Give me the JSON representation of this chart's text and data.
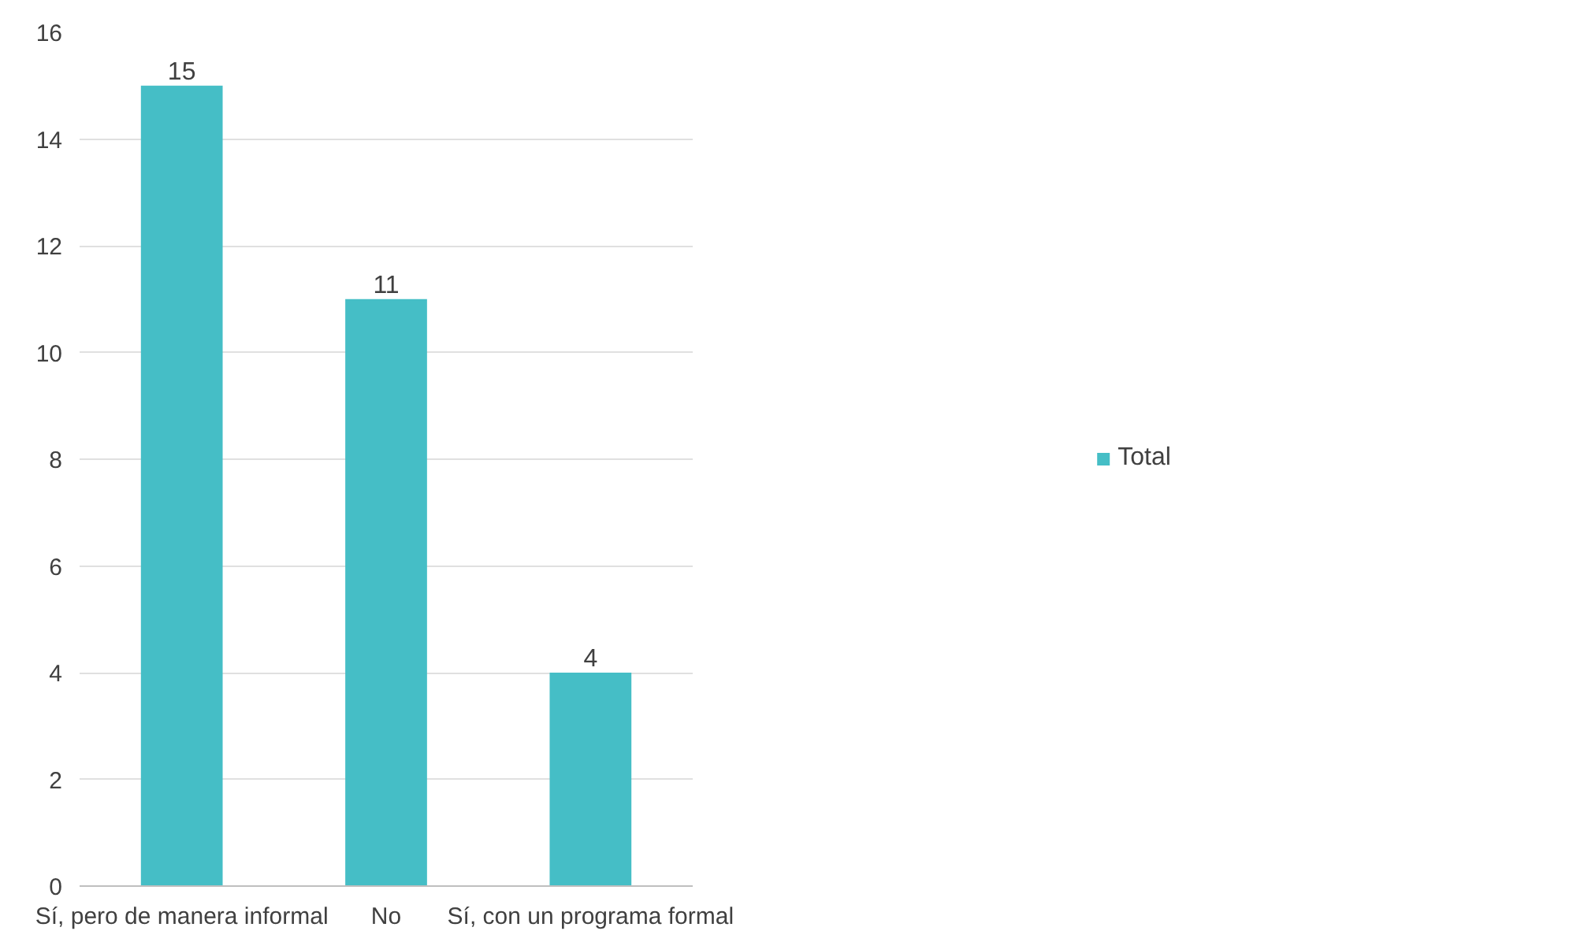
{
  "chart_data": {
    "type": "bar",
    "categories": [
      "Sí, pero de manera informal",
      "No",
      "Sí, con un programa formal"
    ],
    "series": [
      {
        "name": "Total",
        "color": "#45bec6",
        "values": [
          15,
          11,
          4
        ]
      }
    ],
    "ylim": [
      0,
      16
    ],
    "yticks": [
      0,
      2,
      4,
      6,
      8,
      10,
      12,
      14,
      16
    ],
    "grid": "y",
    "legend": "right",
    "data_labels": true
  }
}
